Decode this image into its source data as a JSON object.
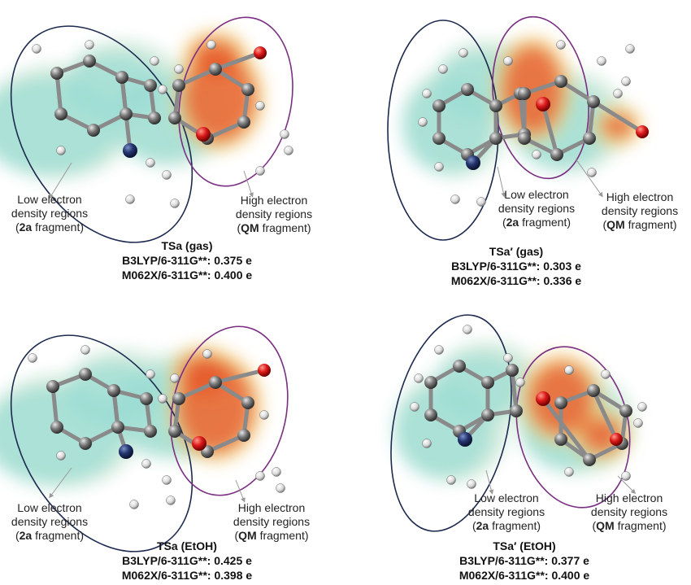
{
  "colors": {
    "low_density": "#8fd8cf",
    "high_density": "#e6552b",
    "fragment_2a_outline": "#1d2a4f",
    "fragment_qm_outline": "#7a2f83",
    "carbon": "#6e6e6e",
    "nitrogen": "#1f2f6b",
    "oxygen": "#d91616",
    "hydrogen": "#f3f3f3"
  },
  "panels": [
    {
      "id": "tsa-gas",
      "ts_label": "TSa",
      "ts_condition": " (gas)",
      "charge_b3lyp": "B3LYP/6-311G**: 0.375 e",
      "charge_m062x": "M062X/6-311G**: 0.400 e",
      "low_label": [
        "Low electron",
        "density regions",
        "(",
        "2a",
        " fragment)"
      ],
      "high_label": [
        "High electron",
        "density regions",
        "(",
        "QM",
        " fragment)"
      ]
    },
    {
      "id": "tsa-prime-gas",
      "ts_label": "TSa′",
      "ts_condition": " (gas)",
      "charge_b3lyp": "B3LYP/6-311G**: 0.303 e",
      "charge_m062x": "M062X/6-311G**: 0.336 e",
      "low_label": [
        "Low electron",
        "density regions",
        "(",
        "2a",
        " fragment)"
      ],
      "high_label": [
        "High electron",
        "density regions",
        "(",
        "QM",
        " fragment)"
      ]
    },
    {
      "id": "tsa-etoh",
      "ts_label": "TSa",
      "ts_condition": " (EtOH)",
      "charge_b3lyp": "B3LYP/6-311G**: 0.425 e",
      "charge_m062x": "M062X/6-311G**: 0.398 e",
      "low_label": [
        "Low electron",
        "density regions",
        "(",
        "2a",
        " fragment)"
      ],
      "high_label": [
        "High electron",
        "density regions",
        "(",
        "QM",
        " fragment)"
      ]
    },
    {
      "id": "tsa-prime-etoh",
      "ts_label": "TSa′",
      "ts_condition": " (EtOH)",
      "charge_b3lyp": "B3LYP/6-311G**: 0.377 e",
      "charge_m062x": "M062X/6-311G**: 0.400 e",
      "low_label": [
        "Low electron",
        "density regions",
        "(",
        "2a",
        " fragment)"
      ],
      "high_label": [
        "High electron",
        "density regions",
        "(",
        "QM",
        " fragment)"
      ]
    }
  ]
}
